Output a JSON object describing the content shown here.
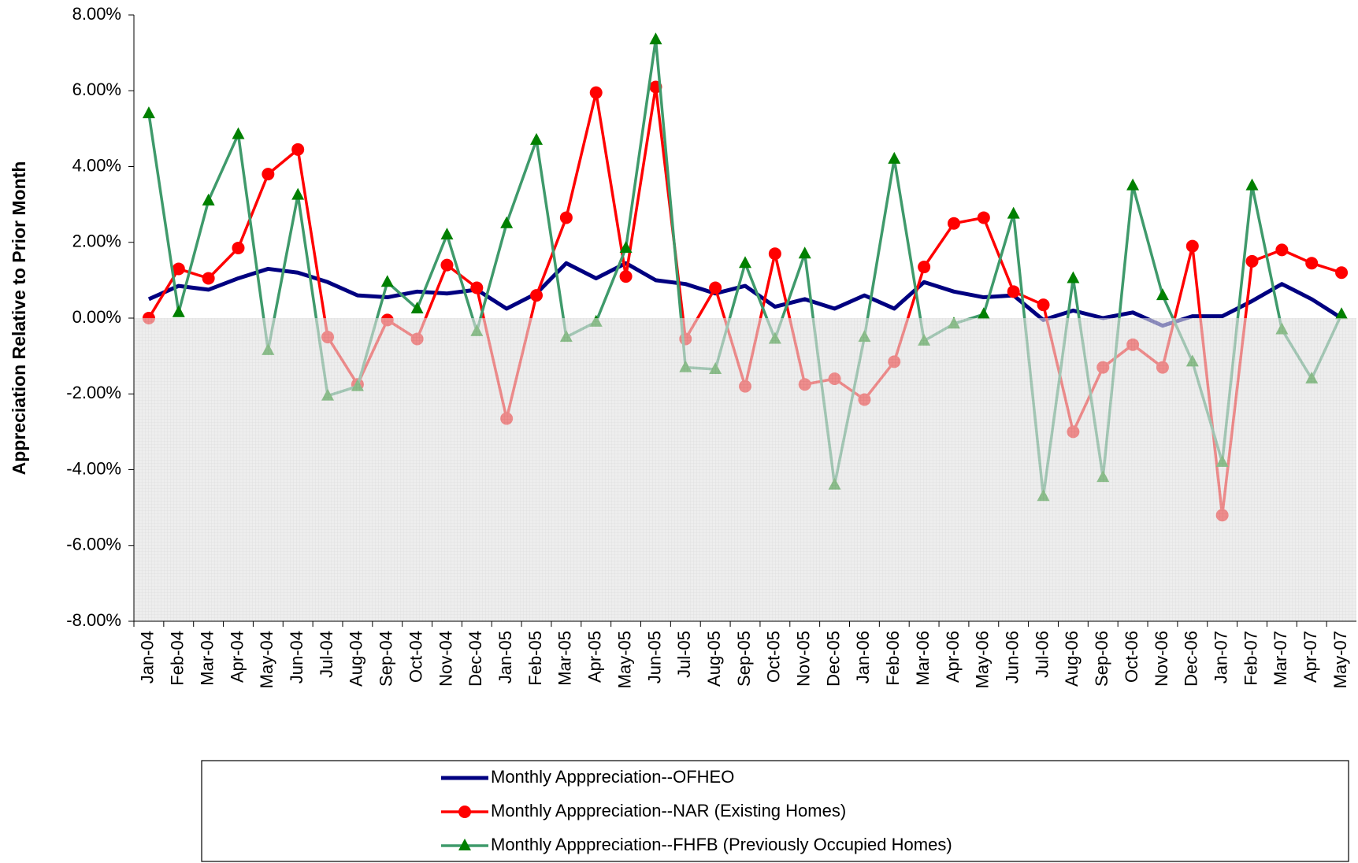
{
  "chart_data": {
    "type": "line",
    "y_label": "Appreciation Relative to Prior Month",
    "categories": [
      "Jan-04",
      "Feb-04",
      "Mar-04",
      "Apr-04",
      "May-04",
      "Jun-04",
      "Jul-04",
      "Aug-04",
      "Sep-04",
      "Oct-04",
      "Nov-04",
      "Dec-04",
      "Jan-05",
      "Feb-05",
      "Mar-05",
      "Apr-05",
      "May-05",
      "Jun-05",
      "Jul-05",
      "Aug-05",
      "Sep-05",
      "Oct-05",
      "Nov-05",
      "Dec-05",
      "Jan-06",
      "Feb-06",
      "Mar-06",
      "Apr-06",
      "May-06",
      "Jun-06",
      "Jul-06",
      "Aug-06",
      "Sep-06",
      "Oct-06",
      "Nov-06",
      "Dec-06",
      "Jan-07",
      "Feb-07",
      "Mar-07",
      "Apr-07",
      "May-07"
    ],
    "series": [
      {
        "name": "Monthly Apppreciation--OFHEO",
        "color": "#000080",
        "marker": "none",
        "values": [
          0.5,
          0.85,
          0.75,
          1.05,
          1.3,
          1.2,
          0.95,
          0.6,
          0.55,
          0.7,
          0.65,
          0.75,
          0.25,
          0.65,
          1.45,
          1.05,
          1.45,
          1.0,
          0.9,
          0.65,
          0.85,
          0.3,
          0.5,
          0.25,
          0.6,
          0.25,
          0.95,
          0.7,
          0.55,
          0.6,
          -0.05,
          0.2,
          0.0,
          0.15,
          -0.2,
          0.05,
          0.05,
          0.45,
          0.9,
          0.5,
          0.0
        ]
      },
      {
        "name": "Monthly Apppreciation--NAR (Existing Homes)",
        "color": "#ff0000",
        "marker": "circle",
        "marker_color": "#ff0000",
        "values": [
          0.0,
          1.3,
          1.05,
          1.85,
          3.8,
          4.45,
          -0.5,
          -1.75,
          -0.05,
          -0.55,
          1.4,
          0.8,
          -2.65,
          0.6,
          2.65,
          5.95,
          1.1,
          6.1,
          -0.55,
          0.8,
          -1.8,
          1.7,
          -1.75,
          -1.6,
          -2.15,
          -1.15,
          1.35,
          2.5,
          2.65,
          0.7,
          0.35,
          -3.0,
          -1.3,
          -0.7,
          -1.3,
          1.9,
          -5.2,
          1.5,
          1.8,
          1.45,
          1.2
        ]
      },
      {
        "name": "Monthly Apppreciation--FHFB (Previously Occupied Homes)",
        "color": "#3f9a6b",
        "marker": "triangle",
        "marker_color": "#008000",
        "values": [
          5.4,
          0.15,
          3.1,
          4.85,
          -0.85,
          3.25,
          -2.05,
          -1.8,
          0.95,
          0.25,
          2.2,
          -0.35,
          2.5,
          4.7,
          -0.5,
          -0.1,
          1.85,
          7.35,
          -1.3,
          -1.35,
          1.45,
          -0.55,
          1.7,
          -4.4,
          -0.5,
          4.2,
          -0.6,
          -0.15,
          0.1,
          2.75,
          -4.7,
          1.05,
          -4.2,
          3.5,
          0.6,
          -1.15,
          -3.8,
          3.5,
          -0.3,
          -1.6,
          0.1
        ]
      }
    ],
    "ylim": [
      -8,
      8
    ],
    "yticks": [
      {
        "value": -8,
        "label": "-8.00%"
      },
      {
        "value": -6,
        "label": "-6.00%"
      },
      {
        "value": -4,
        "label": "-4.00%"
      },
      {
        "value": -2,
        "label": "-2.00%"
      },
      {
        "value": 0,
        "label": "0.00%"
      },
      {
        "value": 2,
        "label": "2.00%"
      },
      {
        "value": 4,
        "label": "4.00%"
      },
      {
        "value": 6,
        "label": "6.00%"
      },
      {
        "value": 8,
        "label": "8.00%"
      }
    ],
    "legend": "bottom"
  }
}
